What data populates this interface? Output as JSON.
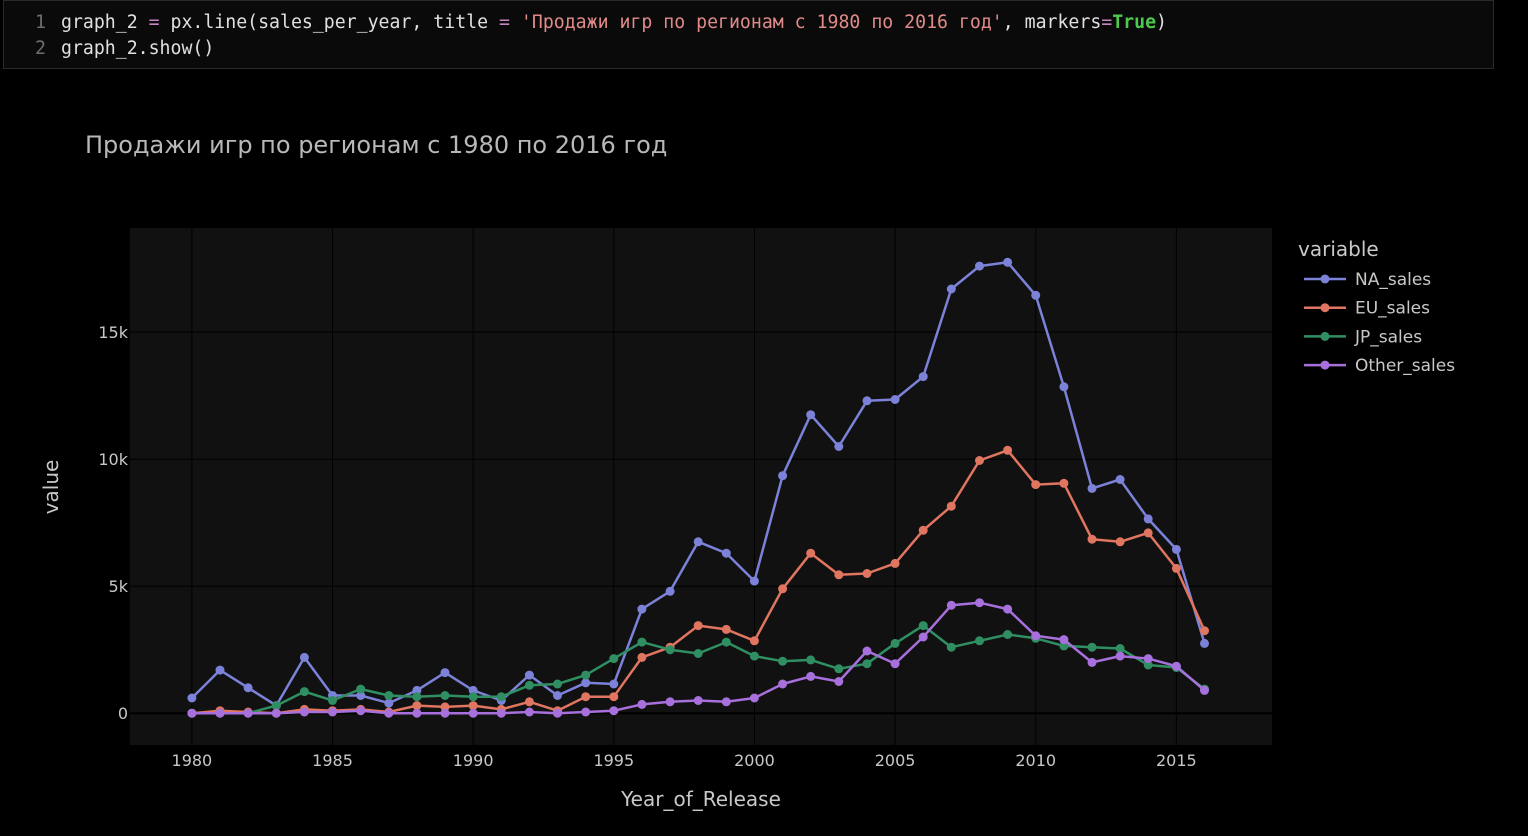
{
  "code_cell": {
    "lines": [
      {
        "number": "1",
        "tokens": [
          {
            "text": "graph_2 ",
            "kind": "plain"
          },
          {
            "text": "=",
            "kind": "op"
          },
          {
            "text": " px.line(sales_per_year, title ",
            "kind": "plain"
          },
          {
            "text": "=",
            "kind": "op"
          },
          {
            "text": " ",
            "kind": "plain"
          },
          {
            "text": "'Продажи игр по регионам с 1980 по 2016 год'",
            "kind": "str"
          },
          {
            "text": ", markers",
            "kind": "plain"
          },
          {
            "text": "=",
            "kind": "op"
          },
          {
            "text": "True",
            "kind": "kw"
          },
          {
            "text": ")",
            "kind": "plain"
          }
        ]
      },
      {
        "number": "2",
        "tokens": [
          {
            "text": "graph_2.show()",
            "kind": "plain"
          }
        ]
      }
    ]
  },
  "chart_data": {
    "type": "line",
    "title": "Продажи игр по регионам с 1980 по 2016 год",
    "xlabel": "Year_of_Release",
    "ylabel": "value",
    "legend_title": "variable",
    "legend_position": "right",
    "grid": true,
    "xlim": [
      1977.8,
      2018.4
    ],
    "ylim": [
      -1250,
      19100
    ],
    "x_ticks": [
      1980,
      1985,
      1990,
      1995,
      2000,
      2005,
      2010,
      2015
    ],
    "x_tick_labels": [
      "1980",
      "1985",
      "1990",
      "1995",
      "2000",
      "2005",
      "2010",
      "2015"
    ],
    "y_ticks": [
      0,
      5000,
      10000,
      15000
    ],
    "y_tick_labels": [
      "0",
      "5k",
      "10k",
      "15k"
    ],
    "colors": {
      "page_bg": "#000000",
      "plot_bg": "#111111",
      "grid": "#000000",
      "text": "#c8c8c8",
      "title": "#b8b8b8"
    },
    "x": [
      1980,
      1981,
      1982,
      1983,
      1984,
      1985,
      1986,
      1987,
      1988,
      1989,
      1990,
      1991,
      1992,
      1993,
      1994,
      1995,
      1996,
      1997,
      1998,
      1999,
      2000,
      2001,
      2002,
      2003,
      2004,
      2005,
      2006,
      2007,
      2008,
      2009,
      2010,
      2011,
      2012,
      2013,
      2014,
      2015,
      2016
    ],
    "series": [
      {
        "name": "NA_sales",
        "color": "#7b82d8",
        "values": [
          600,
          1700,
          1000,
          300,
          2200,
          700,
          700,
          400,
          900,
          1600,
          900,
          500,
          1500,
          700,
          1200,
          1150,
          4100,
          4800,
          6750,
          6300,
          5200,
          9350,
          11750,
          10500,
          12300,
          12350,
          13250,
          16700,
          17600,
          17750,
          16450,
          12850,
          8850,
          9200,
          7650,
          6450,
          2750
        ]
      },
      {
        "name": "EU_sales",
        "color": "#e07560",
        "values": [
          0,
          100,
          50,
          0,
          150,
          100,
          150,
          50,
          300,
          250,
          300,
          150,
          450,
          100,
          650,
          650,
          2200,
          2600,
          3450,
          3300,
          2850,
          4900,
          6300,
          5450,
          5500,
          5900,
          7200,
          8150,
          9950,
          10350,
          9000,
          9050,
          6850,
          6750,
          7100,
          5700,
          3250
        ]
      },
      {
        "name": "JP_sales",
        "color": "#2f8f62",
        "values": [
          0,
          0,
          0,
          300,
          850,
          500,
          950,
          700,
          650,
          700,
          650,
          650,
          1100,
          1150,
          1500,
          2150,
          2800,
          2500,
          2350,
          2800,
          2250,
          2050,
          2100,
          1750,
          1950,
          2750,
          3450,
          2600,
          2850,
          3100,
          2950,
          2650,
          2600,
          2550,
          1900,
          1800,
          950
        ]
      },
      {
        "name": "Other_sales",
        "color": "#a770dc",
        "values": [
          0,
          0,
          0,
          0,
          50,
          50,
          100,
          0,
          0,
          0,
          0,
          0,
          50,
          0,
          50,
          100,
          350,
          450,
          500,
          450,
          600,
          1150,
          1450,
          1250,
          2450,
          1950,
          3000,
          4250,
          4350,
          4100,
          3050,
          2900,
          2000,
          2250,
          2150,
          1850,
          900
        ]
      }
    ]
  }
}
